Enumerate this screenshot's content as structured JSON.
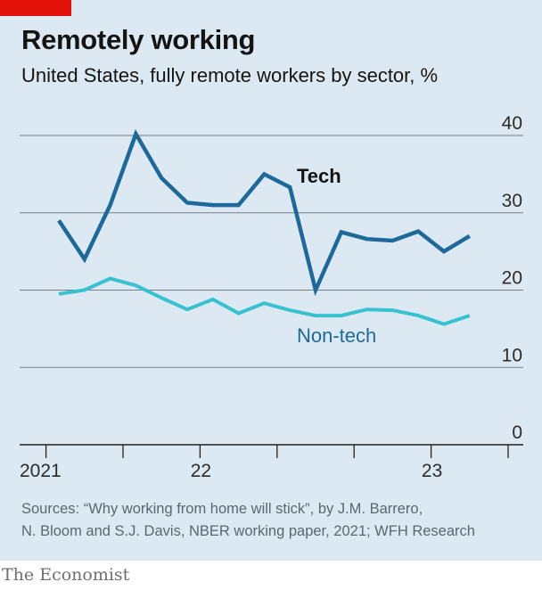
{
  "title": "Remotely working",
  "subtitle": "United States, fully remote workers by sector, %",
  "source_lines": [
    "Sources: “Why working from home will stick”, by J.M. Barrero,",
    "N. Bloom and S.J. Davis, NBER working paper, 2021; WFH Research"
  ],
  "brand": "The Economist",
  "colors": {
    "background": "#dde9f2",
    "accent_red": "#e3120b",
    "tech": "#1d6a9a",
    "non_tech": "#38c1d0",
    "grid": "#4a5560"
  },
  "chart_data": {
    "type": "line",
    "title": "Remotely working",
    "subtitle": "United States, fully remote workers by sector, %",
    "xlabel": "",
    "ylabel": "",
    "ylim": [
      0,
      40
    ],
    "yticks": [
      0,
      10,
      20,
      30,
      40
    ],
    "grid": true,
    "y_axis_side": "right",
    "x_tick_labels": [
      "2021",
      "22",
      "23"
    ],
    "x": [
      "2021-01",
      "2021-02",
      "2021-03",
      "2021-04",
      "2021-05",
      "2021-06",
      "2021-07",
      "2021-08",
      "2021-09",
      "2021-10",
      "2021-11",
      "2021-12",
      "2022-01",
      "2022-02",
      "2022-03",
      "2022-04",
      "2022-05",
      "2022-06"
    ],
    "series": [
      {
        "name": "Tech",
        "label_style": "bold",
        "values": [
          29.0,
          24.0,
          31.0,
          40.2,
          34.5,
          31.3,
          31.0,
          31.0,
          35.0,
          33.3,
          20.0,
          27.5,
          26.6,
          26.4,
          27.6,
          25.0,
          27.0,
          null
        ]
      },
      {
        "name": "Non-tech",
        "label_style": "regular",
        "values": [
          19.5,
          20.0,
          21.5,
          20.6,
          19.0,
          17.5,
          18.8,
          17.0,
          18.3,
          17.4,
          16.7,
          16.7,
          17.5,
          17.4,
          16.7,
          15.6,
          16.7,
          null
        ]
      }
    ]
  }
}
